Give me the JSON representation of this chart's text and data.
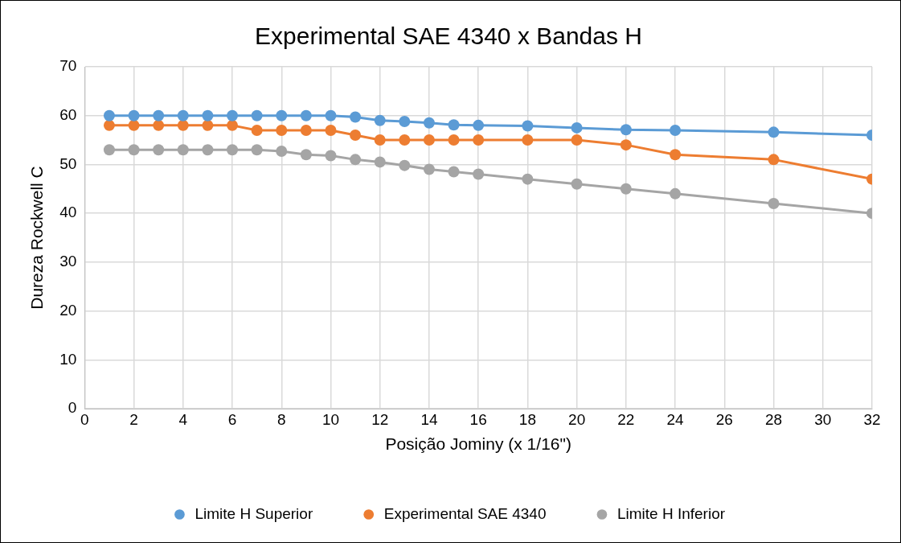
{
  "chart_data": {
    "type": "line",
    "title": "Experimental SAE 4340 x Bandas H",
    "xlabel": "Posição Jominy (x 1/16\")",
    "ylabel": "Dureza Rockwell C",
    "x": [
      1,
      2,
      3,
      4,
      5,
      6,
      7,
      8,
      9,
      10,
      11,
      12,
      13,
      14,
      15,
      16,
      18,
      20,
      22,
      24,
      28,
      32
    ],
    "series": [
      {
        "name": "Limite H Superior",
        "color": "#5b9bd5",
        "values": [
          60,
          60,
          60,
          60,
          60,
          60,
          60,
          60,
          60,
          60,
          59.7,
          59,
          58.8,
          58.5,
          58.1,
          58,
          57.9,
          57.5,
          57.1,
          57,
          56.6,
          56
        ]
      },
      {
        "name": "Experimental SAE 4340",
        "color": "#ed7d31",
        "values": [
          58,
          58,
          58,
          58,
          58,
          58,
          57,
          57,
          57,
          57,
          56,
          55,
          55,
          55,
          55,
          55,
          55,
          55,
          54,
          52,
          51,
          47
        ]
      },
      {
        "name": "Limite H Inferior",
        "color": "#a5a5a5",
        "values": [
          53,
          53,
          53,
          53,
          53,
          53,
          53,
          52.7,
          52,
          51.8,
          51,
          50.5,
          49.8,
          49,
          48.5,
          48,
          47,
          46,
          45,
          44,
          42,
          40
        ]
      }
    ],
    "xlim": [
      0,
      32
    ],
    "xticks": [
      0,
      2,
      4,
      6,
      8,
      10,
      12,
      14,
      16,
      18,
      20,
      22,
      24,
      26,
      28,
      30,
      32
    ],
    "ylim": [
      0,
      70
    ],
    "yticks": [
      0,
      10,
      20,
      30,
      40,
      50,
      60,
      70
    ],
    "grid": true,
    "legend": "bottom",
    "marker": "circle",
    "line_style": "solid"
  }
}
